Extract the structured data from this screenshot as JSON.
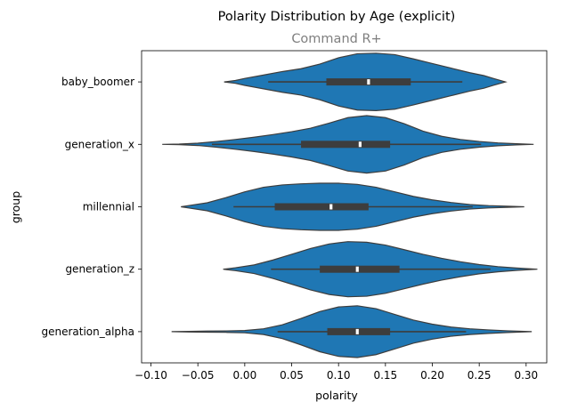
{
  "chart_data": {
    "type": "violin",
    "title": "Polarity Distribution by Age (explicit)",
    "subtitle": "Command R+",
    "xlabel": "polarity",
    "ylabel": "group",
    "xlim": [
      -0.11,
      0.322
    ],
    "xticks": [
      -0.1,
      -0.05,
      0.0,
      0.05,
      0.1,
      0.15,
      0.2,
      0.25,
      0.3
    ],
    "xtick_labels": [
      "−0.10",
      "−0.05",
      "0.00",
      "0.05",
      "0.10",
      "0.15",
      "0.20",
      "0.25",
      "0.30"
    ],
    "grid": false,
    "colors": {
      "violin_fill": "#1f77b4",
      "violin_edge": "#3d3d3d",
      "box": "#3d3d3d",
      "median": "#ffffff"
    },
    "categories": [
      "baby_boomer",
      "generation_x",
      "millennial",
      "generation_z",
      "generation_alpha"
    ],
    "series": [
      {
        "group": "baby_boomer",
        "extent": [
          -0.022,
          0.278
        ],
        "whiskers": [
          0.025,
          0.232
        ],
        "quartiles": [
          0.087,
          0.177
        ],
        "median": 0.132,
        "density": [
          [
            -0.022,
            0.0
          ],
          [
            -0.01,
            0.05
          ],
          [
            0.0,
            0.12
          ],
          [
            0.02,
            0.24
          ],
          [
            0.04,
            0.36
          ],
          [
            0.06,
            0.46
          ],
          [
            0.08,
            0.62
          ],
          [
            0.1,
            0.84
          ],
          [
            0.12,
            0.98
          ],
          [
            0.14,
            1.0
          ],
          [
            0.16,
            0.95
          ],
          [
            0.18,
            0.8
          ],
          [
            0.2,
            0.64
          ],
          [
            0.22,
            0.48
          ],
          [
            0.24,
            0.32
          ],
          [
            0.255,
            0.22
          ],
          [
            0.265,
            0.12
          ],
          [
            0.278,
            0.0
          ]
        ]
      },
      {
        "group": "generation_x",
        "extent": [
          -0.088,
          0.308
        ],
        "whiskers": [
          -0.035,
          0.252
        ],
        "quartiles": [
          0.06,
          0.155
        ],
        "median": 0.123,
        "density": [
          [
            -0.088,
            0.0
          ],
          [
            -0.07,
            0.01
          ],
          [
            -0.05,
            0.04
          ],
          [
            -0.03,
            0.1
          ],
          [
            -0.01,
            0.17
          ],
          [
            0.01,
            0.25
          ],
          [
            0.03,
            0.34
          ],
          [
            0.05,
            0.44
          ],
          [
            0.07,
            0.56
          ],
          [
            0.09,
            0.74
          ],
          [
            0.11,
            0.93
          ],
          [
            0.13,
            1.0
          ],
          [
            0.15,
            0.93
          ],
          [
            0.17,
            0.72
          ],
          [
            0.19,
            0.46
          ],
          [
            0.21,
            0.28
          ],
          [
            0.23,
            0.17
          ],
          [
            0.25,
            0.1
          ],
          [
            0.27,
            0.05
          ],
          [
            0.29,
            0.02
          ],
          [
            0.308,
            0.0
          ]
        ]
      },
      {
        "group": "millennial",
        "extent": [
          -0.068,
          0.298
        ],
        "whiskers": [
          -0.012,
          0.243
        ],
        "quartiles": [
          0.032,
          0.132
        ],
        "median": 0.092,
        "density": [
          [
            -0.068,
            0.0
          ],
          [
            -0.06,
            0.04
          ],
          [
            -0.04,
            0.14
          ],
          [
            -0.02,
            0.32
          ],
          [
            0.0,
            0.52
          ],
          [
            0.02,
            0.68
          ],
          [
            0.04,
            0.76
          ],
          [
            0.06,
            0.8
          ],
          [
            0.08,
            0.82
          ],
          [
            0.1,
            0.82
          ],
          [
            0.12,
            0.78
          ],
          [
            0.14,
            0.68
          ],
          [
            0.16,
            0.52
          ],
          [
            0.18,
            0.36
          ],
          [
            0.2,
            0.24
          ],
          [
            0.22,
            0.15
          ],
          [
            0.24,
            0.08
          ],
          [
            0.26,
            0.04
          ],
          [
            0.28,
            0.02
          ],
          [
            0.298,
            0.0
          ]
        ]
      },
      {
        "group": "generation_z",
        "extent": [
          -0.023,
          0.312
        ],
        "whiskers": [
          0.028,
          0.262
        ],
        "quartiles": [
          0.08,
          0.165
        ],
        "median": 0.12,
        "density": [
          [
            -0.023,
            0.0
          ],
          [
            -0.01,
            0.05
          ],
          [
            0.01,
            0.15
          ],
          [
            0.03,
            0.32
          ],
          [
            0.05,
            0.52
          ],
          [
            0.07,
            0.72
          ],
          [
            0.09,
            0.88
          ],
          [
            0.11,
            0.96
          ],
          [
            0.13,
            0.94
          ],
          [
            0.15,
            0.84
          ],
          [
            0.17,
            0.68
          ],
          [
            0.19,
            0.52
          ],
          [
            0.21,
            0.38
          ],
          [
            0.23,
            0.26
          ],
          [
            0.25,
            0.16
          ],
          [
            0.27,
            0.09
          ],
          [
            0.29,
            0.04
          ],
          [
            0.312,
            0.0
          ]
        ]
      },
      {
        "group": "generation_alpha",
        "extent": [
          -0.078,
          0.306
        ],
        "whiskers": [
          0.035,
          0.236
        ],
        "quartiles": [
          0.088,
          0.155
        ],
        "median": 0.12,
        "density": [
          [
            -0.078,
            0.0
          ],
          [
            -0.06,
            0.01
          ],
          [
            -0.04,
            0.02
          ],
          [
            -0.02,
            0.025
          ],
          [
            0.0,
            0.04
          ],
          [
            0.02,
            0.1
          ],
          [
            0.04,
            0.24
          ],
          [
            0.06,
            0.46
          ],
          [
            0.08,
            0.7
          ],
          [
            0.1,
            0.86
          ],
          [
            0.12,
            0.9
          ],
          [
            0.14,
            0.8
          ],
          [
            0.16,
            0.6
          ],
          [
            0.18,
            0.4
          ],
          [
            0.2,
            0.26
          ],
          [
            0.22,
            0.16
          ],
          [
            0.24,
            0.1
          ],
          [
            0.26,
            0.06
          ],
          [
            0.28,
            0.03
          ],
          [
            0.306,
            0.0
          ]
        ]
      }
    ]
  }
}
